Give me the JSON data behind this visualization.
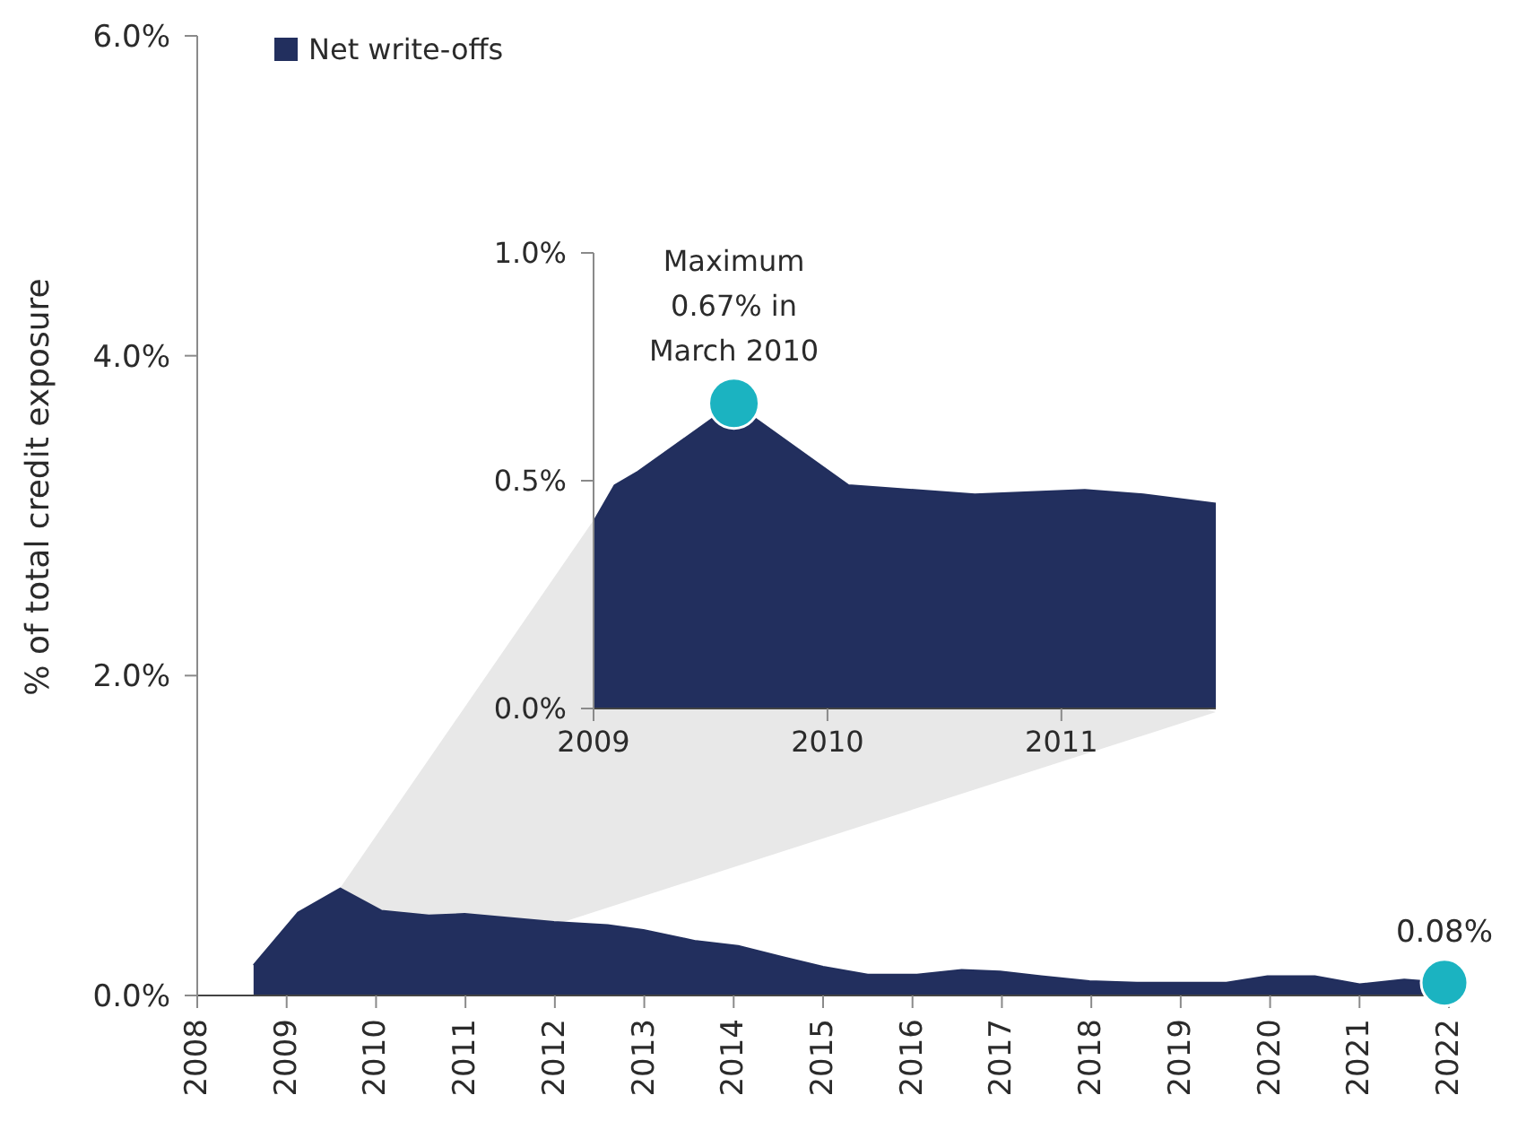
{
  "chart_data": [
    {
      "type": "area",
      "ylabel": "% of total credit exposure",
      "xlim": [
        2008,
        2022
      ],
      "xticks": [
        2008,
        2009,
        2010,
        2011,
        2012,
        2013,
        2014,
        2015,
        2016,
        2017,
        2018,
        2019,
        2020,
        2021,
        2022
      ],
      "ylim": [
        0,
        6
      ],
      "yticks": [
        {
          "value": 0,
          "label": "0.0%"
        },
        {
          "value": 2,
          "label": "2.0%"
        },
        {
          "value": 4,
          "label": "4.0%"
        },
        {
          "value": 6,
          "label": "6.0%"
        }
      ],
      "legend": "top left",
      "series": [
        {
          "name": "Net write-offs",
          "color": "#222f5e",
          "x": [
            2008.63,
            2009.13,
            2009.6,
            2010.06,
            2010.59,
            2010.99,
            2011.99,
            2012.59,
            2012.99,
            2013.58,
            2014.05,
            2014.55,
            2015.0,
            2015.5,
            2016.05,
            2016.55,
            2016.98,
            2017.44,
            2017.98,
            2018.51,
            2019.51,
            2019.97,
            2020.5,
            2021.0,
            2021.5,
            2021.95
          ],
          "values": [
            0.19,
            0.52,
            0.67,
            0.53,
            0.5,
            0.51,
            0.46,
            0.44,
            0.41,
            0.34,
            0.31,
            0.24,
            0.18,
            0.13,
            0.13,
            0.16,
            0.15,
            0.12,
            0.09,
            0.08,
            0.08,
            0.12,
            0.12,
            0.07,
            0.1,
            0.08
          ]
        },
        {
          "type": "scatter",
          "marker": "circle",
          "color": "#1bb3c1",
          "x": [
            2021.95
          ],
          "values": [
            0.08
          ]
        }
      ],
      "annotations": [
        {
          "text": "0.08%",
          "x": 2021.95,
          "y": 0.08
        }
      ]
    },
    {
      "type": "area",
      "xlim": [
        2009,
        2011.66
      ],
      "xticks": [
        2009,
        2010,
        2011
      ],
      "ylim": [
        0,
        1
      ],
      "yticks": [
        {
          "value": 0,
          "label": "0.0%"
        },
        {
          "value": 0.5,
          "label": "0.5%"
        },
        {
          "value": 1,
          "label": "1.0%"
        }
      ],
      "series": [
        {
          "color": "#222f5e",
          "x": [
            2009.0,
            2009.09,
            2009.19,
            2009.6,
            2010.09,
            2010.63,
            2011.1,
            2011.35,
            2011.66
          ],
          "values": [
            0.41,
            0.49,
            0.52,
            0.67,
            0.49,
            0.47,
            0.48,
            0.47,
            0.45
          ]
        },
        {
          "type": "scatter",
          "marker": "circle",
          "color": "#1bb3c1",
          "x": [
            2009.6
          ],
          "values": [
            0.67
          ]
        }
      ],
      "annotations": [
        {
          "text": "Maximum 0.67% in March 2010",
          "x": 2009.6,
          "y": 0.67
        }
      ]
    }
  ]
}
